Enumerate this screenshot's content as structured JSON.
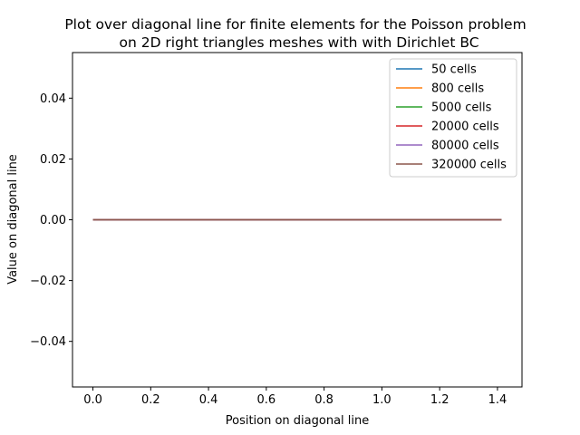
{
  "chart_data": {
    "type": "line",
    "title_line1": "Plot over diagonal line for finite elements for the Poisson problem",
    "title_line2": "on 2D right triangles meshes with with Dirichlet BC",
    "xlabel": "Position on diagonal line",
    "ylabel": "Value on diagonal line",
    "xlim": [
      -0.0707,
      1.4849
    ],
    "ylim": [
      -0.055,
      0.055
    ],
    "xticks": [
      0.0,
      0.2,
      0.4,
      0.6,
      0.8,
      1.0,
      1.2,
      1.4
    ],
    "xtick_labels": [
      "0.0",
      "0.2",
      "0.4",
      "0.6",
      "0.8",
      "1.0",
      "1.2",
      "1.4"
    ],
    "yticks": [
      -0.04,
      -0.02,
      0.0,
      0.02,
      0.04
    ],
    "ytick_labels": [
      "−0.04",
      "−0.02",
      "0.00",
      "0.02",
      "0.04"
    ],
    "legend_position": "top-right",
    "grid": false,
    "series": [
      {
        "name": "50 cells",
        "color": "#1f77b4",
        "x": [
          0.0,
          1.41421
        ],
        "y": [
          0.0,
          0.0
        ]
      },
      {
        "name": "800 cells",
        "color": "#ff7f0e",
        "x": [
          0.0,
          1.41421
        ],
        "y": [
          0.0,
          0.0
        ]
      },
      {
        "name": "5000 cells",
        "color": "#2ca02c",
        "x": [
          0.0,
          1.41421
        ],
        "y": [
          0.0,
          0.0
        ]
      },
      {
        "name": "20000 cells",
        "color": "#d62728",
        "x": [
          0.0,
          1.41421
        ],
        "y": [
          0.0,
          0.0
        ]
      },
      {
        "name": "80000 cells",
        "color": "#9467bd",
        "x": [
          0.0,
          1.41421
        ],
        "y": [
          0.0,
          0.0
        ]
      },
      {
        "name": "320000 cells",
        "color": "#8c564b",
        "x": [
          0.0,
          1.41421
        ],
        "y": [
          0.0,
          0.0
        ]
      }
    ]
  }
}
